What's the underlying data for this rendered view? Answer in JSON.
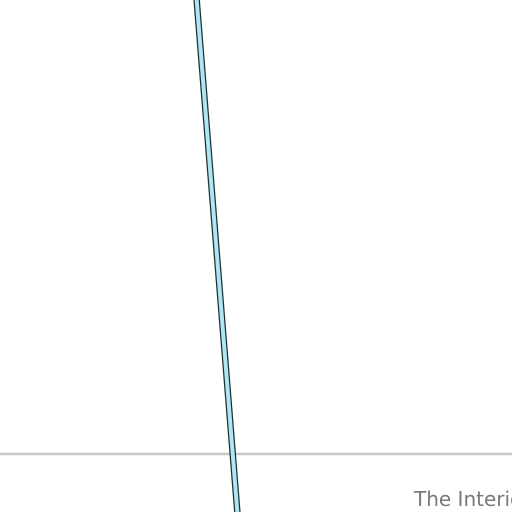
{
  "map": {
    "colors": {
      "background": "#ffffff",
      "boundary_line": "#c8c8c8",
      "waterway_fill": "#aee6f6",
      "waterway_outline": "#1f2f33",
      "label_text": "#7a7a7a"
    },
    "labels": {
      "place_label": "The Interio"
    }
  }
}
